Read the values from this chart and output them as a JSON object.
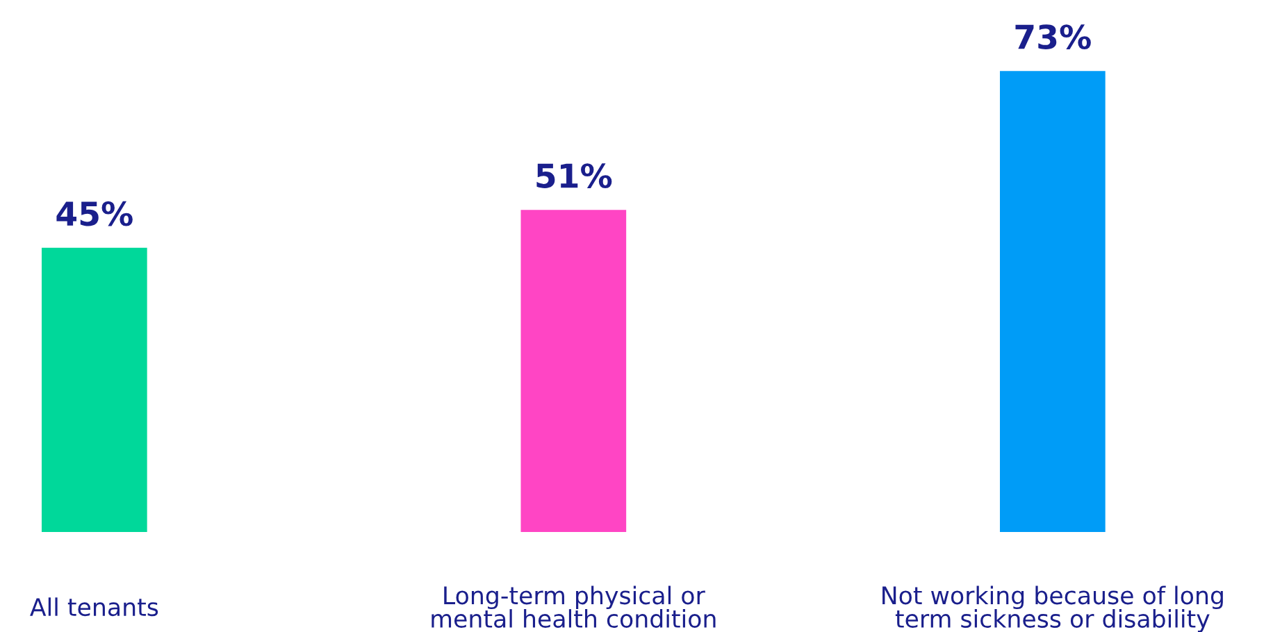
{
  "chart_data": {
    "type": "bar",
    "categories": [
      "All tenants",
      "Long-term physical or\nmental health condition",
      "Not working because of long\nterm sickness or disability"
    ],
    "values": [
      45,
      51,
      73
    ],
    "colors": [
      "#00d89a",
      "#ff45c4",
      "#009cf7"
    ],
    "value_labels": [
      "45%",
      "51%",
      "73%"
    ],
    "grid": false,
    "legend": false
  }
}
